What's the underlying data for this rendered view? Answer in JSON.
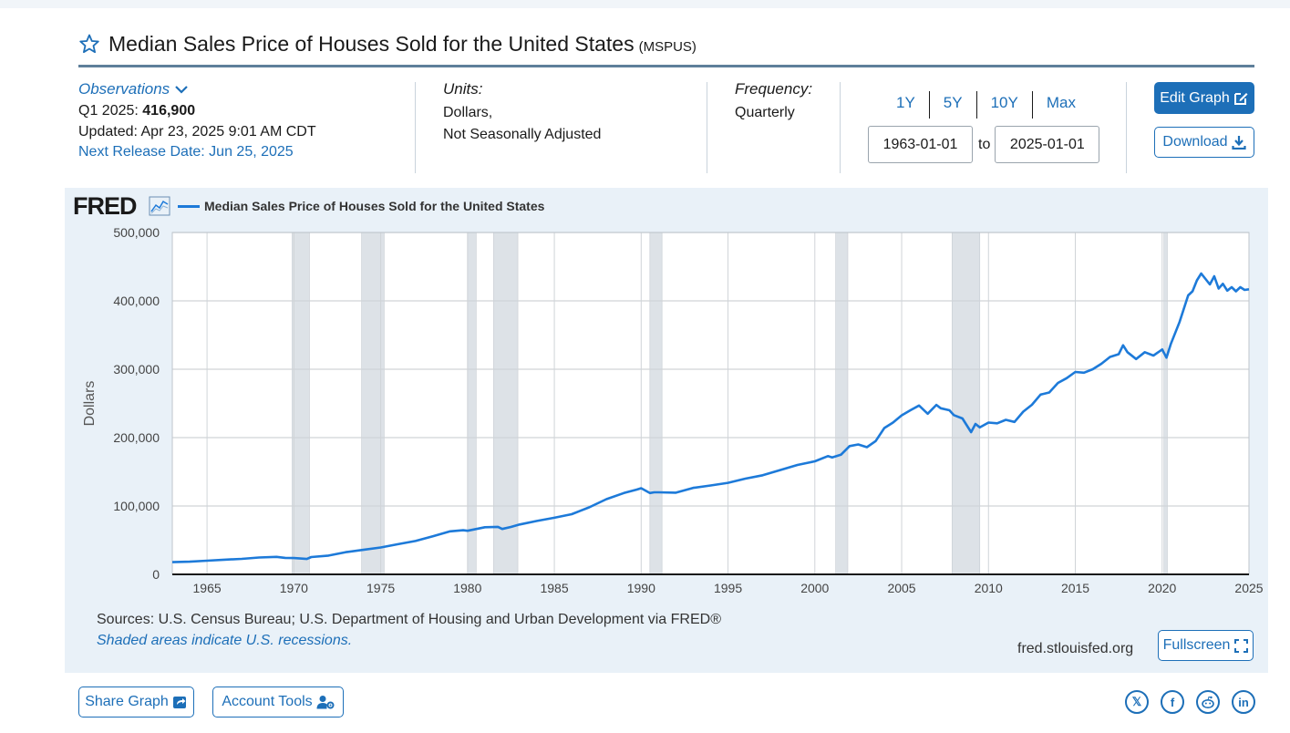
{
  "header": {
    "title": "Median Sales Price of Houses Sold for the United States",
    "series_id": "(MSPUS)"
  },
  "observations": {
    "link_label": "Observations",
    "period_label": "Q1 2025:",
    "value": "416,900",
    "updated": "Updated: Apr 23, 2025 9:01 AM CDT",
    "next_release": "Next Release Date: Jun 25, 2025"
  },
  "units": {
    "heading": "Units:",
    "line1": "Dollars,",
    "line2": "Not Seasonally Adjusted"
  },
  "frequency": {
    "heading": "Frequency:",
    "value": "Quarterly"
  },
  "range": {
    "buttons": [
      "1Y",
      "5Y",
      "10Y",
      "Max"
    ],
    "start_date": "1963-01-01",
    "to_label": "to",
    "end_date": "2025-01-01"
  },
  "actions": {
    "edit_graph": "Edit Graph",
    "download": "Download",
    "fullscreen": "Fullscreen",
    "share_graph": "Share Graph",
    "account_tools": "Account Tools"
  },
  "graph": {
    "logo": "FRED",
    "sources": "Sources: U.S. Census Bureau; U.S. Department of Housing and Urban Development via FRED®",
    "recession_note": "Shaded areas indicate U.S. recessions.",
    "site": "fred.stlouisfed.org"
  },
  "social": [
    "x-icon",
    "facebook-icon",
    "reddit-icon",
    "linkedin-icon"
  ],
  "colors": {
    "accent": "#1d6fb8",
    "series": "#1d7ad9",
    "recession": "#dde2e7",
    "panel": "#e9f1f8"
  },
  "chart_data": {
    "type": "line",
    "title": "Median Sales Price of Houses Sold for the United States",
    "xlabel": "",
    "ylabel": "Dollars",
    "xlim": [
      1963.0,
      2025.0
    ],
    "ylim": [
      0,
      500000
    ],
    "x_ticks": [
      1965,
      1970,
      1975,
      1980,
      1985,
      1990,
      1995,
      2000,
      2005,
      2010,
      2015,
      2020,
      2025
    ],
    "y_ticks": [
      0,
      100000,
      200000,
      300000,
      400000,
      500000
    ],
    "y_tick_labels": [
      "0",
      "100,000",
      "200,000",
      "300,000",
      "400,000",
      "500,000"
    ],
    "recessions": [
      [
        1969.9,
        1970.9
      ],
      [
        1973.9,
        1975.2
      ],
      [
        1980.0,
        1980.5
      ],
      [
        1981.5,
        1982.9
      ],
      [
        1990.5,
        1991.2
      ],
      [
        2001.2,
        2001.9
      ],
      [
        2007.9,
        2009.5
      ],
      [
        2020.1,
        2020.3
      ]
    ],
    "series": [
      {
        "name": "Median Sales Price of Houses Sold for the United States",
        "x": [
          1963.0,
          1964.0,
          1965.0,
          1966.0,
          1967.0,
          1968.0,
          1969.0,
          1969.5,
          1970.0,
          1970.75,
          1971.0,
          1972.0,
          1973.0,
          1974.0,
          1975.0,
          1976.0,
          1977.0,
          1978.0,
          1979.0,
          1979.75,
          1980.0,
          1981.0,
          1981.75,
          1982.0,
          1982.5,
          1983.0,
          1984.0,
          1985.0,
          1986.0,
          1987.0,
          1987.5,
          1988.0,
          1989.0,
          1989.75,
          1990.0,
          1990.5,
          1990.75,
          1991.0,
          1992.0,
          1993.0,
          1994.0,
          1995.0,
          1996.0,
          1997.0,
          1998.0,
          1999.0,
          2000.0,
          2000.75,
          2001.0,
          2001.5,
          2002.0,
          2002.5,
          2003.0,
          2003.5,
          2004.0,
          2004.5,
          2005.0,
          2005.5,
          2006.0,
          2006.5,
          2007.0,
          2007.25,
          2007.75,
          2008.0,
          2008.5,
          2009.0,
          2009.25,
          2009.5,
          2010.0,
          2010.5,
          2011.0,
          2011.5,
          2012.0,
          2012.5,
          2013.0,
          2013.5,
          2014.0,
          2014.5,
          2015.0,
          2015.5,
          2016.0,
          2016.5,
          2017.0,
          2017.5,
          2017.75,
          2018.0,
          2018.5,
          2019.0,
          2019.5,
          2020.0,
          2020.25,
          2020.5,
          2021.0,
          2021.5,
          2021.75,
          2022.0,
          2022.25,
          2022.75,
          2023.0,
          2023.25,
          2023.5,
          2023.75,
          2024.0,
          2024.25,
          2024.5,
          2024.75,
          2025.0
        ],
        "values": [
          17800,
          18500,
          20000,
          21500,
          22700,
          24700,
          25600,
          24200,
          23900,
          22500,
          25300,
          27400,
          32500,
          35900,
          39300,
          44200,
          48800,
          55700,
          62900,
          64600,
          63700,
          68900,
          69500,
          66400,
          69300,
          73000,
          78200,
          82800,
          88000,
          98000,
          104000,
          110000,
          119000,
          124000,
          126000,
          119000,
          120000,
          120000,
          119500,
          126500,
          130000,
          133900,
          140000,
          145000,
          152500,
          160000,
          165300,
          173000,
          171000,
          175000,
          187600,
          190000,
          186000,
          195000,
          214000,
          222000,
          232500,
          240000,
          247000,
          235000,
          247900,
          243000,
          240000,
          233000,
          228000,
          208000,
          220000,
          215000,
          222000,
          221000,
          226000,
          223000,
          238000,
          248000,
          263000,
          266000,
          280000,
          287000,
          296000,
          295000,
          300000,
          308000,
          318000,
          322000,
          335000,
          325000,
          315000,
          325000,
          320000,
          329000,
          317000,
          337000,
          369000,
          408000,
          414000,
          430000,
          440000,
          424000,
          436000,
          418000,
          425000,
          415000,
          420000,
          414000,
          420000,
          416000,
          416900
        ]
      }
    ]
  }
}
